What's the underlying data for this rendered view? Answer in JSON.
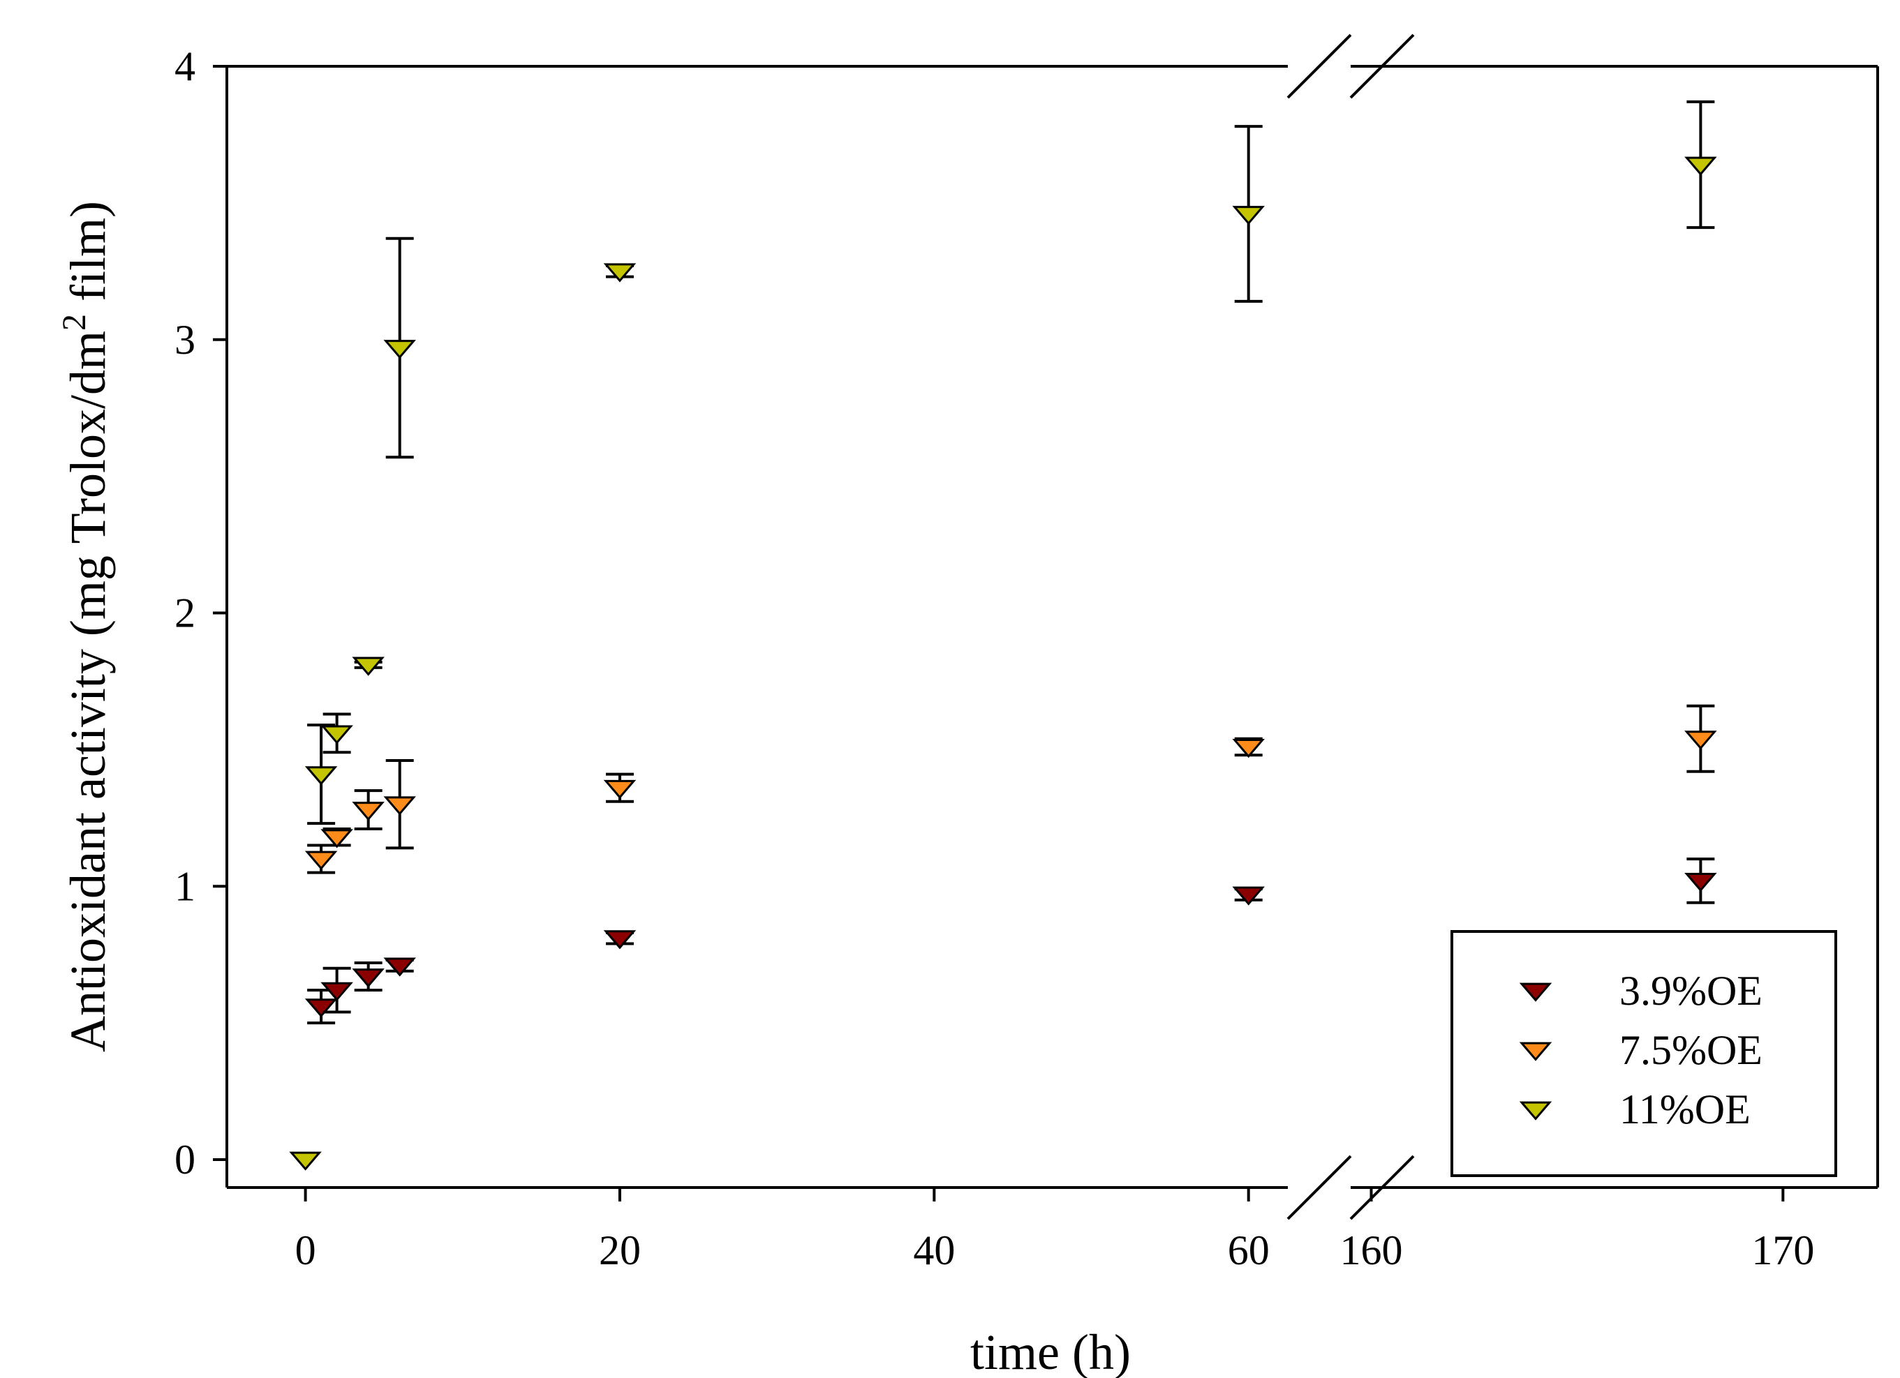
{
  "chart_data": {
    "type": "scatter",
    "title": "",
    "xlabel": "time (h)",
    "ylabel": {
      "main": "Antioxidant activity (mg Trolox/dm",
      "superscript": "2",
      "tail": " film)"
    },
    "ylim": [
      0,
      4
    ],
    "x_segments": [
      {
        "range": [
          -5,
          62.5
        ],
        "ticks": [
          0,
          20,
          40,
          60
        ]
      },
      {
        "range": [
          159.5,
          172.3
        ],
        "ticks": [
          160,
          170
        ]
      }
    ],
    "y_ticks": [
      0,
      1,
      2,
      3,
      4
    ],
    "axis_break": true,
    "marker": "triangle-down",
    "legend_position": "bottom-right",
    "series": [
      {
        "name": "3.9%OE",
        "color": "#8b0000",
        "points": [
          {
            "x": 1,
            "y": 0.56,
            "err": 0.06
          },
          {
            "x": 2,
            "y": 0.62,
            "err": 0.08
          },
          {
            "x": 4,
            "y": 0.67,
            "err": 0.05
          },
          {
            "x": 6,
            "y": 0.71,
            "err": 0.02
          },
          {
            "x": 20,
            "y": 0.81,
            "err": 0.02
          },
          {
            "x": 60,
            "y": 0.97,
            "err": 0.02
          },
          {
            "x": 168,
            "y": 1.02,
            "err": 0.08
          }
        ]
      },
      {
        "name": "7.5%OE",
        "color": "#ff8c1a",
        "points": [
          {
            "x": 1,
            "y": 1.1,
            "err": 0.05
          },
          {
            "x": 2,
            "y": 1.18,
            "err": 0.03
          },
          {
            "x": 4,
            "y": 1.28,
            "err": 0.07
          },
          {
            "x": 6,
            "y": 1.3,
            "err": 0.16
          },
          {
            "x": 20,
            "y": 1.36,
            "err": 0.05
          },
          {
            "x": 60,
            "y": 1.51,
            "err": 0.03
          },
          {
            "x": 168,
            "y": 1.54,
            "err": 0.12
          }
        ]
      },
      {
        "name": "11%OE",
        "color": "#c4c400",
        "points": [
          {
            "x": 0,
            "y": 0,
            "err": 0
          },
          {
            "x": 1,
            "y": 1.41,
            "err": 0.18
          },
          {
            "x": 2,
            "y": 1.56,
            "err": 0.07
          },
          {
            "x": 4,
            "y": 1.81,
            "err": 0.01
          },
          {
            "x": 6,
            "y": 2.97,
            "err": 0.4
          },
          {
            "x": 20,
            "y": 3.25,
            "err": 0.02
          },
          {
            "x": 60,
            "y": 3.46,
            "err": 0.32
          },
          {
            "x": 168,
            "y": 3.64,
            "err": 0.23
          }
        ]
      }
    ]
  }
}
